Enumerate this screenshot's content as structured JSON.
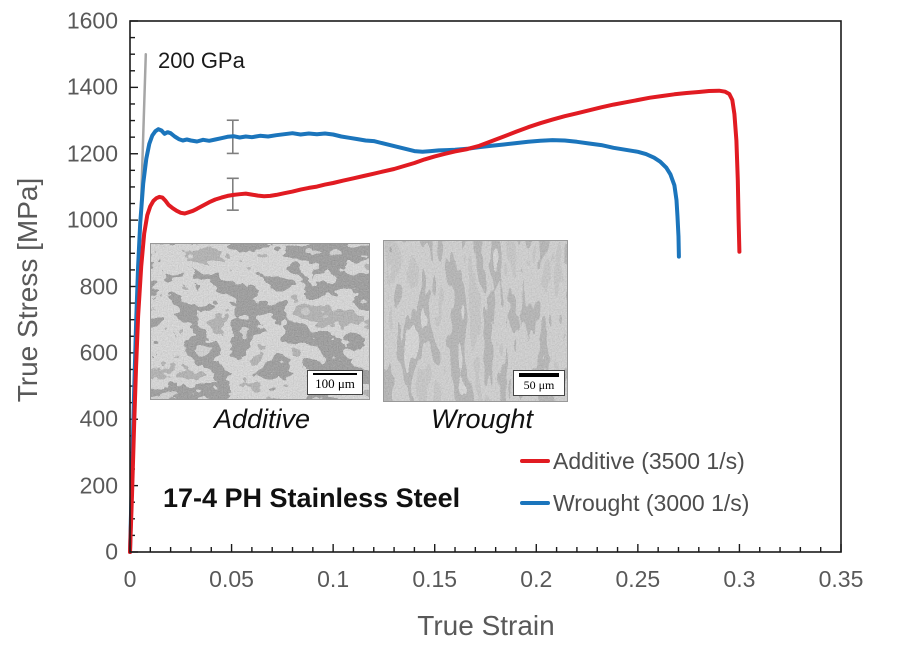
{
  "chart_data": {
    "type": "line",
    "title": "17-4 PH Stainless Steel",
    "xlabel": "True Strain",
    "ylabel": "True Stress [MPa]",
    "xlim": [
      0,
      0.35
    ],
    "ylim": [
      0,
      1600
    ],
    "grid": false,
    "legend_position": "inside lower-right",
    "x_ticks": {
      "values": [
        0,
        0.05,
        0.1,
        0.15,
        0.2,
        0.25,
        0.3,
        0.35
      ],
      "labels": [
        "0",
        "0.05",
        "0.1",
        "0.15",
        "0.2",
        "0.25",
        "0.3",
        "0.35"
      ],
      "minor_step": 0.01
    },
    "y_ticks": {
      "values": [
        0,
        200,
        400,
        600,
        800,
        1000,
        1200,
        1400,
        1600
      ],
      "labels": [
        "0",
        "200",
        "400",
        "600",
        "800",
        "1000",
        "1200",
        "1400",
        "1600"
      ],
      "minor_step": 50
    },
    "series": [
      {
        "name": "Additive (3500 1/s)",
        "color": "#e11b22",
        "width": 4,
        "points": [
          [
            0.0,
            0
          ],
          [
            0.001,
            170
          ],
          [
            0.002,
            380
          ],
          [
            0.003,
            560
          ],
          [
            0.004,
            710
          ],
          [
            0.0055,
            860
          ],
          [
            0.007,
            960
          ],
          [
            0.0085,
            1015
          ],
          [
            0.01,
            1042
          ],
          [
            0.0115,
            1058
          ],
          [
            0.013,
            1066
          ],
          [
            0.0145,
            1070
          ],
          [
            0.016,
            1068
          ],
          [
            0.0175,
            1058
          ],
          [
            0.019,
            1046
          ],
          [
            0.021,
            1036
          ],
          [
            0.023,
            1028
          ],
          [
            0.025,
            1022
          ],
          [
            0.027,
            1020
          ],
          [
            0.029,
            1024
          ],
          [
            0.031,
            1028
          ],
          [
            0.033,
            1034
          ],
          [
            0.036,
            1044
          ],
          [
            0.039,
            1054
          ],
          [
            0.042,
            1062
          ],
          [
            0.045,
            1068
          ],
          [
            0.048,
            1073
          ],
          [
            0.051,
            1076
          ],
          [
            0.054,
            1078
          ],
          [
            0.057,
            1080
          ],
          [
            0.06,
            1077
          ],
          [
            0.063,
            1074
          ],
          [
            0.066,
            1072
          ],
          [
            0.069,
            1073
          ],
          [
            0.072,
            1076
          ],
          [
            0.076,
            1081
          ],
          [
            0.08,
            1086
          ],
          [
            0.084,
            1092
          ],
          [
            0.088,
            1097
          ],
          [
            0.092,
            1101
          ],
          [
            0.096,
            1107
          ],
          [
            0.1,
            1112
          ],
          [
            0.105,
            1119
          ],
          [
            0.11,
            1126
          ],
          [
            0.115,
            1133
          ],
          [
            0.12,
            1140
          ],
          [
            0.125,
            1147
          ],
          [
            0.13,
            1154
          ],
          [
            0.135,
            1163
          ],
          [
            0.14,
            1172
          ],
          [
            0.145,
            1183
          ],
          [
            0.15,
            1192
          ],
          [
            0.155,
            1200
          ],
          [
            0.16,
            1207
          ],
          [
            0.166,
            1214
          ],
          [
            0.172,
            1224
          ],
          [
            0.178,
            1238
          ],
          [
            0.184,
            1252
          ],
          [
            0.19,
            1266
          ],
          [
            0.196,
            1280
          ],
          [
            0.202,
            1292
          ],
          [
            0.208,
            1303
          ],
          [
            0.214,
            1313
          ],
          [
            0.22,
            1322
          ],
          [
            0.226,
            1331
          ],
          [
            0.232,
            1340
          ],
          [
            0.238,
            1348
          ],
          [
            0.244,
            1355
          ],
          [
            0.25,
            1362
          ],
          [
            0.256,
            1369
          ],
          [
            0.262,
            1374
          ],
          [
            0.268,
            1379
          ],
          [
            0.274,
            1383
          ],
          [
            0.28,
            1386
          ],
          [
            0.285,
            1389
          ],
          [
            0.29,
            1390
          ],
          [
            0.293,
            1387
          ],
          [
            0.295,
            1380
          ],
          [
            0.2965,
            1362
          ],
          [
            0.2975,
            1320
          ],
          [
            0.2985,
            1240
          ],
          [
            0.2992,
            1120
          ],
          [
            0.2996,
            1000
          ],
          [
            0.3,
            905
          ]
        ]
      },
      {
        "name": "Wrought (3000 1/s)",
        "color": "#1b75bc",
        "width": 4,
        "points": [
          [
            0.0,
            0
          ],
          [
            0.001,
            230
          ],
          [
            0.002,
            480
          ],
          [
            0.003,
            690
          ],
          [
            0.004,
            860
          ],
          [
            0.005,
            990
          ],
          [
            0.0065,
            1110
          ],
          [
            0.008,
            1185
          ],
          [
            0.0095,
            1230
          ],
          [
            0.011,
            1255
          ],
          [
            0.0125,
            1268
          ],
          [
            0.014,
            1274
          ],
          [
            0.0155,
            1270
          ],
          [
            0.017,
            1260
          ],
          [
            0.0185,
            1265
          ],
          [
            0.02,
            1262
          ],
          [
            0.022,
            1252
          ],
          [
            0.024,
            1244
          ],
          [
            0.026,
            1240
          ],
          [
            0.028,
            1243
          ],
          [
            0.03,
            1240
          ],
          [
            0.033,
            1237
          ],
          [
            0.036,
            1242
          ],
          [
            0.039,
            1239
          ],
          [
            0.042,
            1243
          ],
          [
            0.045,
            1247
          ],
          [
            0.048,
            1251
          ],
          [
            0.051,
            1253
          ],
          [
            0.054,
            1249
          ],
          [
            0.057,
            1252
          ],
          [
            0.06,
            1250
          ],
          [
            0.064,
            1254
          ],
          [
            0.068,
            1252
          ],
          [
            0.072,
            1256
          ],
          [
            0.076,
            1259
          ],
          [
            0.08,
            1262
          ],
          [
            0.084,
            1258
          ],
          [
            0.088,
            1261
          ],
          [
            0.092,
            1259
          ],
          [
            0.096,
            1261
          ],
          [
            0.1,
            1258
          ],
          [
            0.104,
            1252
          ],
          [
            0.108,
            1248
          ],
          [
            0.112,
            1244
          ],
          [
            0.116,
            1240
          ],
          [
            0.12,
            1238
          ],
          [
            0.124,
            1232
          ],
          [
            0.128,
            1226
          ],
          [
            0.132,
            1220
          ],
          [
            0.136,
            1214
          ],
          [
            0.14,
            1208
          ],
          [
            0.144,
            1206
          ],
          [
            0.148,
            1208
          ],
          [
            0.152,
            1210
          ],
          [
            0.156,
            1211
          ],
          [
            0.16,
            1212
          ],
          [
            0.166,
            1215
          ],
          [
            0.172,
            1220
          ],
          [
            0.178,
            1224
          ],
          [
            0.184,
            1228
          ],
          [
            0.19,
            1232
          ],
          [
            0.196,
            1236
          ],
          [
            0.202,
            1239
          ],
          [
            0.208,
            1241
          ],
          [
            0.214,
            1240
          ],
          [
            0.22,
            1236
          ],
          [
            0.226,
            1231
          ],
          [
            0.232,
            1226
          ],
          [
            0.238,
            1218
          ],
          [
            0.244,
            1212
          ],
          [
            0.25,
            1206
          ],
          [
            0.254,
            1199
          ],
          [
            0.258,
            1188
          ],
          [
            0.261,
            1176
          ],
          [
            0.264,
            1158
          ],
          [
            0.266,
            1138
          ],
          [
            0.268,
            1105
          ],
          [
            0.269,
            1060
          ],
          [
            0.2695,
            1010
          ],
          [
            0.27,
            950
          ],
          [
            0.2702,
            890
          ]
        ]
      },
      {
        "name": "200 GPa modulus line",
        "color": "#a6a6a6",
        "width": 2.5,
        "points": [
          [
            0.0,
            0
          ],
          [
            0.0078,
            1500
          ]
        ]
      }
    ],
    "error_bars": [
      {
        "series": "Wrought (3000 1/s)",
        "x": 0.0506,
        "y": 1251,
        "err": 50
      },
      {
        "series": "Additive (3500 1/s)",
        "x": 0.0506,
        "y": 1078,
        "err": 48
      }
    ],
    "annotations": [
      {
        "text": "200 GPa"
      }
    ]
  },
  "labels": {
    "y_axis_title": "True Stress [MPa]",
    "x_axis_title": "True Strain",
    "modulus": "200 GPa",
    "material": "17-4 PH Stainless Steel",
    "inset_additive": "Additive",
    "inset_wrought": "Wrought",
    "scalebar_additive": "100 μm",
    "scalebar_wrought": "50 μm"
  },
  "legend": {
    "items": [
      {
        "label": "Additive (3500 1/s)",
        "color": "#e11b22"
      },
      {
        "label": "Wrought (3000 1/s)",
        "color": "#1b75bc"
      }
    ]
  },
  "colors": {
    "axis": "#1a1a1a",
    "tick_text": "#595959",
    "error_bar": "#7f7f7f"
  }
}
